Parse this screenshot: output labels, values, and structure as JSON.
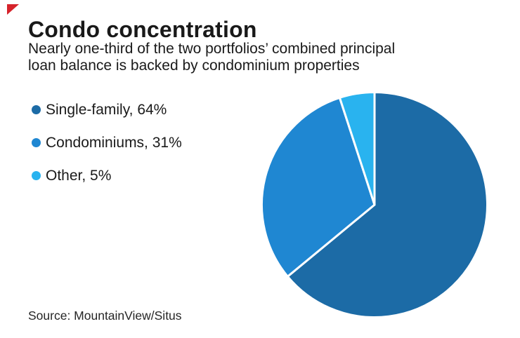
{
  "page": {
    "background": "#ffffff"
  },
  "brand": {
    "corner_mark": "red-triangle",
    "corner_mark_color": "#d6232b"
  },
  "header": {
    "title": "Condo concentration",
    "subtitle_line1": "Nearly one-third of the two portfolios’ combined principal",
    "subtitle_line2": "loan balance is backed by condominium properties"
  },
  "chart_data": {
    "type": "pie",
    "title": "Condo concentration",
    "subtitle": "Nearly one-third of the two portfolios’ combined principal loan balance is backed by condominium properties",
    "categories": [
      "Single-family",
      "Condominiums",
      "Other"
    ],
    "values": [
      64,
      31,
      5
    ],
    "unit": "%",
    "colors": [
      "#1c6ba6",
      "#1f87d2",
      "#29b3ef"
    ],
    "slice_border_color": "#ffffff",
    "slice_border_width": 3,
    "start_angle_deg": 0,
    "direction": "clockwise",
    "legend_position": "left",
    "legend": [
      {
        "label": "Single-family, 64%",
        "color": "#1c6ba6"
      },
      {
        "label": "Condominiums, 31%",
        "color": "#1f87d2"
      },
      {
        "label": "Other, 5%",
        "color": "#29b3ef"
      }
    ]
  },
  "footer": {
    "source": "Source: MountainView/Situs"
  }
}
